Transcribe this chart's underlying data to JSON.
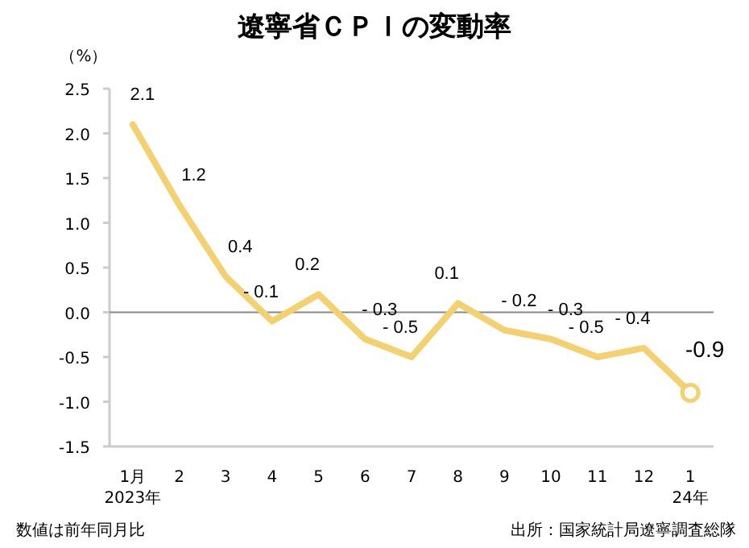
{
  "chart_data": {
    "type": "line",
    "title": "遼寧省ＣＰＩの変動率",
    "ylabel": "（%）",
    "categories": [
      "1月\n2023年",
      "2",
      "3",
      "4",
      "5",
      "6",
      "7",
      "8",
      "9",
      "10",
      "11",
      "12",
      "1\n24年"
    ],
    "series": [
      {
        "color": "#f3d170",
        "values": [
          2.1,
          1.2,
          0.4,
          -0.1,
          0.2,
          -0.3,
          -0.5,
          0.1,
          -0.2,
          -0.3,
          -0.5,
          -0.4,
          -0.9
        ],
        "value_labels": [
          "2.1",
          "1.2",
          "0.4",
          "- 0.1",
          "0.2",
          "- 0.3",
          "- 0.5",
          "0.1",
          "- 0.2",
          "- 0.3",
          "- 0.5",
          "- 0.4",
          "-0.9"
        ]
      },
      {
        "type": "scatter",
        "color": "#f3d170",
        "x": [
          "1\n24年"
        ],
        "values": [
          -0.9
        ],
        "marker": "circle"
      }
    ],
    "ylim": [
      -1.5,
      2.5
    ],
    "yticks": [
      {
        "value": -1.5,
        "label": "-1.5"
      },
      {
        "value": -1,
        "label": "-1.0"
      },
      {
        "value": -0.5,
        "label": "-0.5"
      },
      {
        "value": 0,
        "label": "0.0"
      },
      {
        "value": 0.5,
        "label": "0.5"
      },
      {
        "value": 1,
        "label": "1.0"
      },
      {
        "value": 1.5,
        "label": "1.5"
      },
      {
        "value": 2,
        "label": "2.0"
      },
      {
        "value": 2.5,
        "label": "2.5"
      }
    ],
    "ref_lines": [
      {
        "axis": "y",
        "value": 0,
        "color": "#888888"
      }
    ],
    "annotations": [
      "数値は前年同月比",
      "出所：国家統計局遼寧調査総隊"
    ]
  }
}
